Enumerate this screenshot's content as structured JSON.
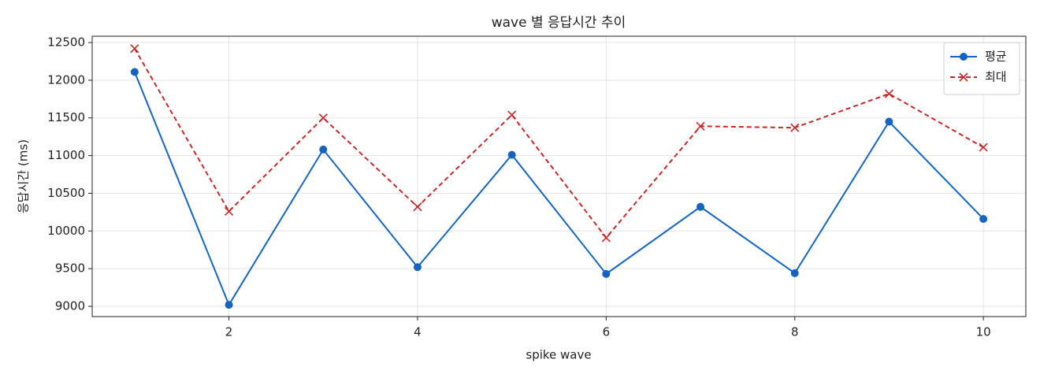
{
  "chart_data": {
    "type": "line",
    "title": "wave 별 응답시간 추이",
    "x_label": "spike wave",
    "y_label": "응답시간 (ms)",
    "x": [
      1,
      2,
      3,
      4,
      5,
      6,
      7,
      8,
      9,
      10
    ],
    "series": [
      {
        "name": "평균",
        "color": "#1565c0",
        "marker": "o",
        "linestyle": "solid",
        "values": [
          12110,
          9020,
          11080,
          9520,
          11010,
          9430,
          10320,
          9440,
          11450,
          10160
        ]
      },
      {
        "name": "최대",
        "color": "#c62828",
        "marker": "x",
        "linestyle": "dashed",
        "values": [
          12420,
          10260,
          11500,
          10320,
          11540,
          9910,
          11390,
          11370,
          11820,
          11110
        ]
      }
    ],
    "xlim": [
      0.55,
      10.45
    ],
    "xticks": [
      2,
      4,
      6,
      8,
      10
    ],
    "ylim": [
      8864,
      12584
    ],
    "yticks": [
      9000,
      9500,
      10000,
      10500,
      11000,
      11500,
      12000,
      12500
    ],
    "grid": true,
    "legend": "upper right"
  }
}
